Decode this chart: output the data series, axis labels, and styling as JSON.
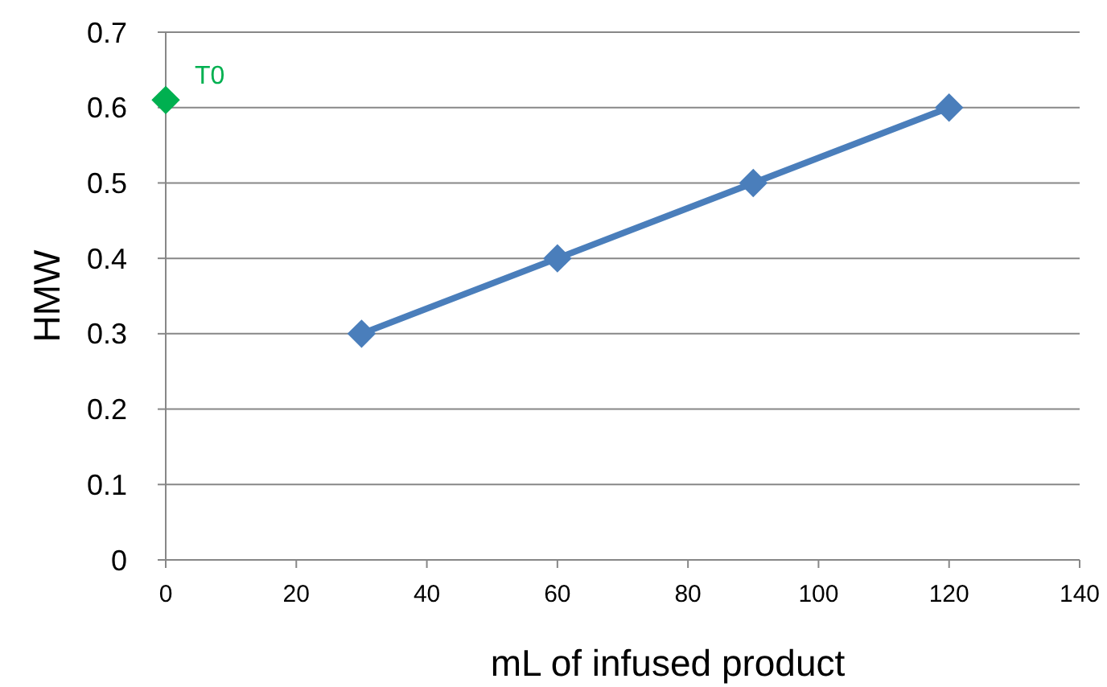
{
  "chart_data": {
    "type": "line",
    "xlabel": "mL of infused product",
    "ylabel": "HMW",
    "xlim": [
      0,
      140
    ],
    "xticks": [
      0,
      20,
      40,
      60,
      80,
      100,
      120,
      140
    ],
    "ylim": [
      0,
      0.7
    ],
    "yticks": [
      0,
      0.1,
      0.2,
      0.3,
      0.4,
      0.5,
      0.6,
      0.7
    ],
    "grid": "y",
    "marker": "diamond",
    "line_style": "solid",
    "series": [
      {
        "color": "#4a7ebb",
        "x": [
          30,
          60,
          90,
          120
        ],
        "values": [
          0.3,
          0.4,
          0.5,
          0.6
        ]
      },
      {
        "type": "scatter",
        "color": "#00b050",
        "x": [
          0
        ],
        "values": [
          0.61
        ]
      }
    ],
    "annotations": [
      {
        "text": "T0",
        "x": 0,
        "y": 0.61
      }
    ]
  }
}
